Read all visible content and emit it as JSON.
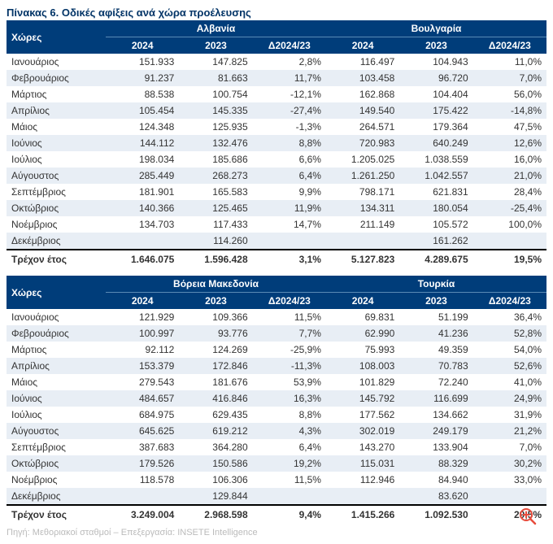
{
  "title": "Πίνακας 6. Οδικές αφίξεις ανά χώρα προέλευσης",
  "colors": {
    "header_bg": "#003d7a",
    "header_fg": "#ffffff",
    "odd_row_bg": "#e8eef5",
    "even_row_bg": "#ffffff",
    "title_color": "#003366",
    "source_color": "#bbbbbb",
    "border_color": "#000000"
  },
  "typography": {
    "title_fontsize": 13,
    "header_fontsize": 12,
    "body_fontsize": 12,
    "source_fontsize": 11
  },
  "labels": {
    "countries_header": "Χώρες",
    "y2024": "2024",
    "y2023": "2023",
    "delta": "Δ2024/23",
    "total": "Τρέχον έτος"
  },
  "months": [
    "Ιανουάριος",
    "Φεβρουάριος",
    "Μάρτιος",
    "Απρίλιος",
    "Μάιος",
    "Ιούνιος",
    "Ιούλιος",
    "Αύγουστος",
    "Σεπτέμβριος",
    "Οκτώβριος",
    "Νοέμβριος",
    "Δεκέμβριος"
  ],
  "tables": [
    {
      "left_country": "Αλβανία",
      "right_country": "Βουλγαρία",
      "rows": [
        {
          "l24": "151.933",
          "l23": "147.825",
          "ld": "2,8%",
          "r24": "116.497",
          "r23": "104.943",
          "rd": "11,0%"
        },
        {
          "l24": "91.237",
          "l23": "81.663",
          "ld": "11,7%",
          "r24": "103.458",
          "r23": "96.720",
          "rd": "7,0%"
        },
        {
          "l24": "88.538",
          "l23": "100.754",
          "ld": "-12,1%",
          "r24": "162.868",
          "r23": "104.404",
          "rd": "56,0%"
        },
        {
          "l24": "105.454",
          "l23": "145.335",
          "ld": "-27,4%",
          "r24": "149.540",
          "r23": "175.422",
          "rd": "-14,8%"
        },
        {
          "l24": "124.348",
          "l23": "125.935",
          "ld": "-1,3%",
          "r24": "264.571",
          "r23": "179.364",
          "rd": "47,5%"
        },
        {
          "l24": "144.112",
          "l23": "132.476",
          "ld": "8,8%",
          "r24": "720.983",
          "r23": "640.249",
          "rd": "12,6%"
        },
        {
          "l24": "198.034",
          "l23": "185.686",
          "ld": "6,6%",
          "r24": "1.205.025",
          "r23": "1.038.559",
          "rd": "16,0%"
        },
        {
          "l24": "285.449",
          "l23": "268.273",
          "ld": "6,4%",
          "r24": "1.261.250",
          "r23": "1.042.557",
          "rd": "21,0%"
        },
        {
          "l24": "181.901",
          "l23": "165.583",
          "ld": "9,9%",
          "r24": "798.171",
          "r23": "621.831",
          "rd": "28,4%"
        },
        {
          "l24": "140.366",
          "l23": "125.465",
          "ld": "11,9%",
          "r24": "134.311",
          "r23": "180.054",
          "rd": "-25,4%"
        },
        {
          "l24": "134.703",
          "l23": "117.433",
          "ld": "14,7%",
          "r24": "211.149",
          "r23": "105.572",
          "rd": "100,0%"
        },
        {
          "l24": "",
          "l23": "114.260",
          "ld": "",
          "r24": "",
          "r23": "161.262",
          "rd": ""
        }
      ],
      "total": {
        "l24": "1.646.075",
        "l23": "1.596.428",
        "ld": "3,1%",
        "r24": "5.127.823",
        "r23": "4.289.675",
        "rd": "19,5%"
      }
    },
    {
      "left_country": "Βόρεια Μακεδονία",
      "right_country": "Τουρκία",
      "rows": [
        {
          "l24": "121.929",
          "l23": "109.366",
          "ld": "11,5%",
          "r24": "69.831",
          "r23": "51.199",
          "rd": "36,4%"
        },
        {
          "l24": "100.997",
          "l23": "93.776",
          "ld": "7,7%",
          "r24": "62.990",
          "r23": "41.236",
          "rd": "52,8%"
        },
        {
          "l24": "92.112",
          "l23": "124.269",
          "ld": "-25,9%",
          "r24": "75.993",
          "r23": "49.359",
          "rd": "54,0%"
        },
        {
          "l24": "153.379",
          "l23": "172.846",
          "ld": "-11,3%",
          "r24": "108.003",
          "r23": "70.783",
          "rd": "52,6%"
        },
        {
          "l24": "279.543",
          "l23": "181.676",
          "ld": "53,9%",
          "r24": "101.829",
          "r23": "72.240",
          "rd": "41,0%"
        },
        {
          "l24": "484.657",
          "l23": "416.846",
          "ld": "16,3%",
          "r24": "145.792",
          "r23": "116.699",
          "rd": "24,9%"
        },
        {
          "l24": "684.975",
          "l23": "629.435",
          "ld": "8,8%",
          "r24": "177.562",
          "r23": "134.662",
          "rd": "31,9%"
        },
        {
          "l24": "645.625",
          "l23": "619.212",
          "ld": "4,3%",
          "r24": "302.019",
          "r23": "249.179",
          "rd": "21,2%"
        },
        {
          "l24": "387.683",
          "l23": "364.280",
          "ld": "6,4%",
          "r24": "143.270",
          "r23": "133.904",
          "rd": "7,0%"
        },
        {
          "l24": "179.526",
          "l23": "150.586",
          "ld": "19,2%",
          "r24": "115.031",
          "r23": "88.329",
          "rd": "30,2%"
        },
        {
          "l24": "118.578",
          "l23": "106.306",
          "ld": "11,5%",
          "r24": "112.946",
          "r23": "84.940",
          "rd": "33,0%"
        },
        {
          "l24": "",
          "l23": "129.844",
          "ld": "",
          "r24": "",
          "r23": "83.620",
          "rd": ""
        }
      ],
      "total": {
        "l24": "3.249.004",
        "l23": "2.968.598",
        "ld": "9,4%",
        "r24": "1.415.266",
        "r23": "1.092.530",
        "rd": "29,5%"
      }
    }
  ],
  "source": "Πηγή: Μεθοριακοί σταθμοί – Επεξεργασία: INSETE Intelligence",
  "icons": {
    "zoom": "zoom-in-icon"
  }
}
